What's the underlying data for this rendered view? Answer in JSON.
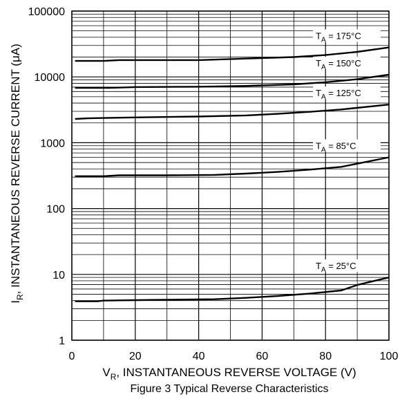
{
  "chart_data": {
    "type": "line",
    "title": "Figure 3 Typical Reverse Characteristics",
    "xlabel": {
      "main": "V",
      "sub": "R",
      "rest": ", INSTANTANEOUS REVERSE VOLTAGE (V)"
    },
    "ylabel": {
      "main": "I",
      "sub": "R",
      "rest": ", INSTANTANEOUS REVERSE CURRENT (μA)"
    },
    "x_scale": "linear",
    "y_scale": "log",
    "xlim": [
      0,
      100
    ],
    "ylim": [
      1,
      100000
    ],
    "x_ticks": [
      "0",
      "20",
      "40",
      "60",
      "80",
      "100"
    ],
    "y_ticks": [
      "1",
      "10",
      "100",
      "1000",
      "10000",
      "100000"
    ],
    "grid": true,
    "series": [
      {
        "name": "TA = 175°C",
        "label": {
          "main": "T",
          "sub": "A",
          "rest": " = 175°C"
        },
        "x": [
          1,
          10,
          15,
          25,
          40,
          55,
          70,
          80,
          90,
          100
        ],
        "y": [
          17500,
          17500,
          18000,
          18000,
          18000,
          19000,
          20000,
          21500,
          24000,
          28000
        ]
      },
      {
        "name": "TA = 150°C",
        "label": {
          "main": "T",
          "sub": "A",
          "rest": " = 150°C"
        },
        "x": [
          1,
          12,
          20,
          40,
          55,
          70,
          80,
          90,
          100
        ],
        "y": [
          6800,
          6800,
          7000,
          7100,
          7300,
          7700,
          8300,
          9200,
          10800
        ]
      },
      {
        "name": "TA = 125°C",
        "label": {
          "main": "T",
          "sub": "A",
          "rest": " = 125°C"
        },
        "x": [
          1,
          5,
          15,
          25,
          40,
          55,
          65,
          75,
          85,
          100
        ],
        "y": [
          2300,
          2350,
          2400,
          2450,
          2500,
          2600,
          2750,
          2950,
          3200,
          3800
        ]
      },
      {
        "name": "TA = 85°C",
        "label": {
          "main": "T",
          "sub": "A",
          "rest": " = 85°C"
        },
        "x": [
          1,
          10,
          15,
          30,
          45,
          55,
          65,
          75,
          85,
          100
        ],
        "y": [
          310,
          310,
          320,
          320,
          325,
          340,
          360,
          390,
          430,
          600
        ]
      },
      {
        "name": "TA = 25°C",
        "label": {
          "main": "T",
          "sub": "A",
          "rest": " = 25°C"
        },
        "x": [
          1,
          8,
          10,
          25,
          45,
          55,
          65,
          75,
          85,
          90,
          100
        ],
        "y": [
          3.9,
          3.9,
          4.0,
          4.1,
          4.2,
          4.4,
          4.7,
          5.1,
          5.7,
          6.9,
          9.0
        ]
      }
    ]
  }
}
